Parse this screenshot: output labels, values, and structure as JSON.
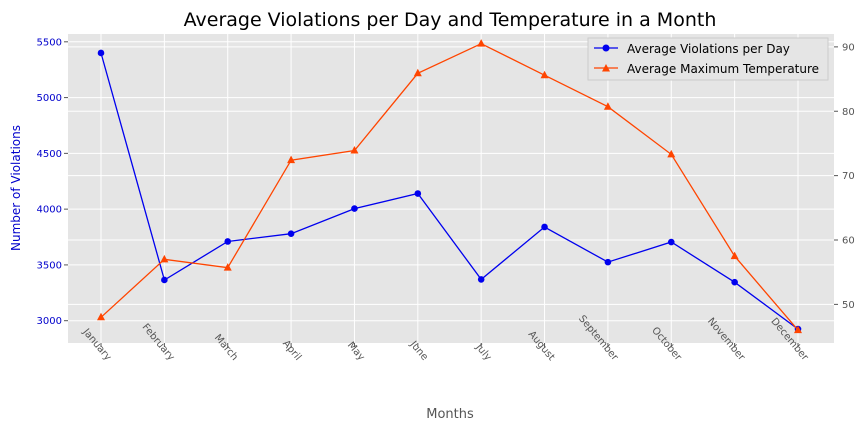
{
  "chart_data": {
    "type": "line",
    "title": "Average Violations per Day and Temperature in a Month",
    "xlabel": "Months",
    "ylabel": "Number of Violations",
    "y2label": "",
    "categories": [
      "January",
      "February",
      "March",
      "April",
      "May",
      "June",
      "July",
      "August",
      "September",
      "October",
      "November",
      "December"
    ],
    "series": [
      {
        "name": "Average Violations per Day",
        "axis": "left",
        "color": "#0000ee",
        "marker": "circle",
        "values": [
          5400,
          3365,
          3710,
          3780,
          4005,
          4140,
          3370,
          3840,
          3525,
          3705,
          3345,
          2925
        ]
      },
      {
        "name": "Average Maximum Temperature",
        "axis": "right",
        "color": "#ff4500",
        "marker": "triangle",
        "values": [
          48.0,
          57.0,
          55.7,
          72.4,
          73.9,
          85.9,
          90.5,
          85.6,
          80.7,
          73.3,
          57.5,
          46.0
        ]
      }
    ],
    "ylim": [
      2800,
      5570
    ],
    "y2lim": [
      44.0,
      92.0
    ],
    "yticks": [
      3000,
      3500,
      4000,
      4500,
      5000,
      5500
    ],
    "y2ticks": [
      50,
      60,
      70,
      80,
      90
    ],
    "grid": true,
    "legend": "top-right",
    "background": "#e5e5e5"
  }
}
